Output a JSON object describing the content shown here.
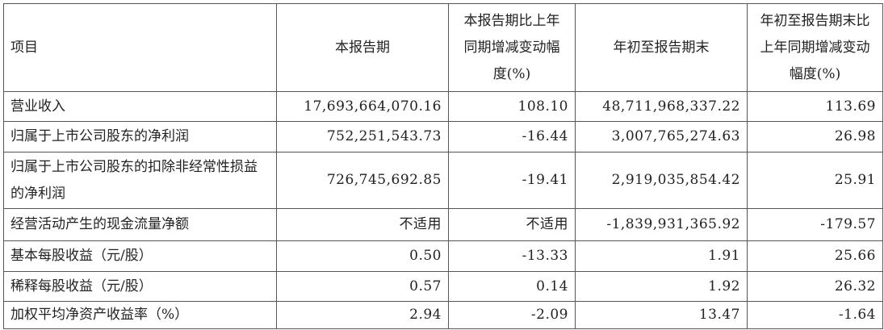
{
  "headers": [
    "项目",
    "本报告期",
    "本报告期比上年同期增减变动幅度(%)",
    "年初至报告期末",
    "年初至报告期末比上年同期增减变动幅度(%)"
  ],
  "rows": [
    {
      "item": "营业收入",
      "current": "17,693,664,070.16",
      "current_change": "108.10",
      "ytd": "48,711,968,337.22",
      "ytd_change": "113.69"
    },
    {
      "item": "归属于上市公司股东的净利润",
      "current": "752,251,543.73",
      "current_change": "-16.44",
      "ytd": "3,007,765,274.63",
      "ytd_change": "26.98"
    },
    {
      "item": "归属于上市公司股东的扣除非经常性损益的净利润",
      "current": "726,745,692.85",
      "current_change": "-19.41",
      "ytd": "2,919,035,854.42",
      "ytd_change": "25.91"
    },
    {
      "item": "经营活动产生的现金流量净额",
      "current": "不适用",
      "current_change": "不适用",
      "ytd": "-1,839,931,365.92",
      "ytd_change": "-179.57"
    },
    {
      "item": "基本每股收益（元/股）",
      "current": "0.50",
      "current_change": "-13.33",
      "ytd": "1.91",
      "ytd_change": "25.66"
    },
    {
      "item": "稀释每股收益（元/股）",
      "current": "0.57",
      "current_change": "0.14",
      "ytd": "1.92",
      "ytd_change": "26.32"
    },
    {
      "item": "加权平均净资产收益率（%）",
      "current": "2.94",
      "current_change": "-2.09",
      "ytd": "13.47",
      "ytd_change": "-1.64"
    }
  ]
}
